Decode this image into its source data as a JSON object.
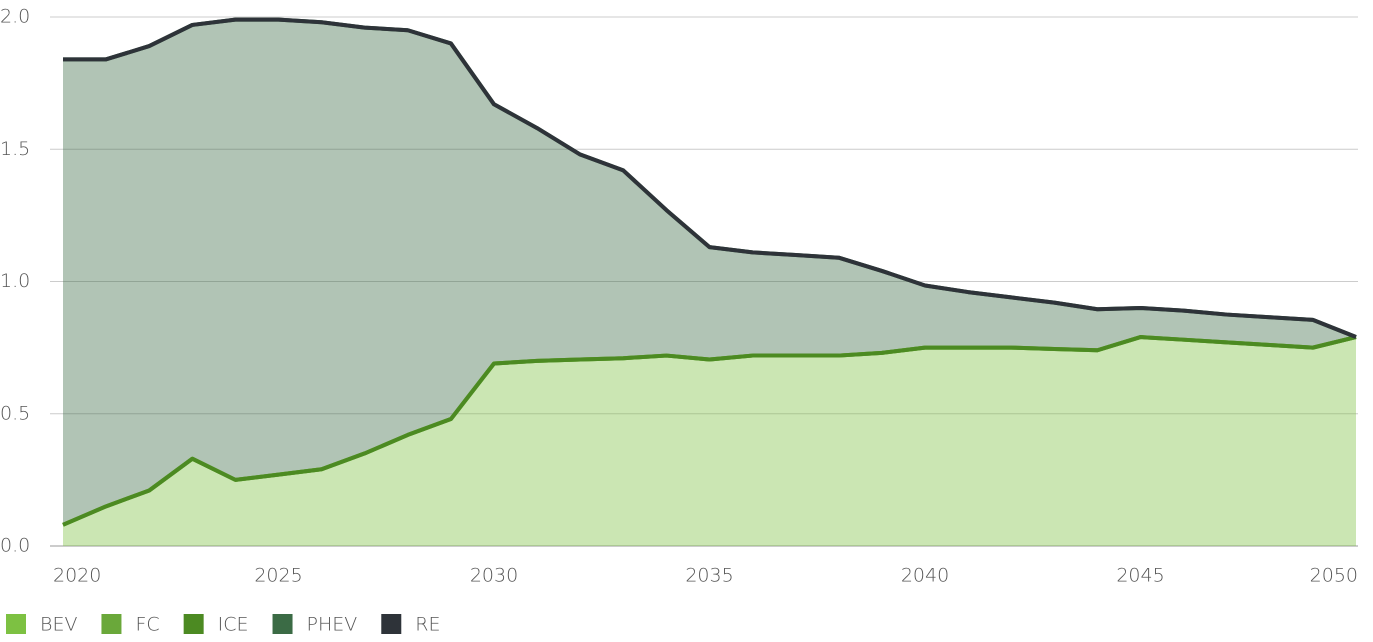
{
  "chart_data": {
    "type": "area",
    "stacked": true,
    "grid": true,
    "legend": "bottom-left",
    "x": [
      2020,
      2021,
      2022,
      2023,
      2024,
      2025,
      2026,
      2027,
      2028,
      2029,
      2030,
      2031,
      2032,
      2033,
      2034,
      2035,
      2036,
      2037,
      2038,
      2039,
      2040,
      2041,
      2042,
      2043,
      2044,
      2045,
      2046,
      2047,
      2048,
      2049,
      2050
    ],
    "xlim": [
      2020,
      2050
    ],
    "xticks": [
      2020,
      2025,
      2030,
      2035,
      2040,
      2045,
      2050
    ],
    "ylim": [
      0,
      2
    ],
    "yticks": [
      {
        "value": 0,
        "label": "0.0"
      },
      0.5,
      {
        "value": 1,
        "label": "1.0"
      },
      1.5,
      {
        "value": 2,
        "label": "2.0"
      }
    ],
    "series": [
      {
        "name": "BEV",
        "color": "#7dc142",
        "values": [
          0.08,
          0.15,
          0.21,
          0.33,
          0.25,
          0.27,
          0.29,
          0.35,
          0.42,
          0.48,
          0.69,
          0.7,
          0.705,
          0.71,
          0.72,
          0.705,
          0.72,
          0.72,
          0.72,
          0.73,
          0.75,
          0.75,
          0.75,
          0.745,
          0.74,
          0.79,
          0.78,
          0.77,
          0.76,
          0.75,
          0.79
        ]
      },
      {
        "name": "FC",
        "color": "#6aa83a",
        "values": [
          0,
          0,
          0,
          0,
          0,
          0,
          0,
          0,
          0,
          0,
          0,
          0,
          0,
          0,
          0,
          0,
          0,
          0,
          0,
          0,
          0,
          0,
          0,
          0,
          0,
          0,
          0,
          0,
          0,
          0,
          0
        ]
      },
      {
        "name": "ICE",
        "color": "#4c8a22",
        "values": [
          0,
          0,
          0,
          0,
          0,
          0,
          0,
          0,
          0,
          0,
          0,
          0,
          0,
          0,
          0,
          0,
          0,
          0,
          0,
          0,
          0,
          0,
          0,
          0,
          0,
          0,
          0,
          0,
          0,
          0,
          0
        ]
      },
      {
        "name": "PHEV",
        "color": "#3b6b45",
        "values": [
          1.76,
          1.69,
          1.68,
          1.64,
          1.74,
          1.72,
          1.69,
          1.61,
          1.53,
          1.42,
          0.98,
          0.88,
          0.775,
          0.71,
          0.55,
          0.425,
          0.39,
          0.38,
          0.37,
          0.31,
          0.235,
          0.21,
          0.19,
          0.175,
          0.155,
          0.11,
          0.11,
          0.105,
          0.105,
          0.105,
          0
        ]
      },
      {
        "name": "RE",
        "color": "#2e3339",
        "values": [
          0,
          0,
          0,
          0,
          0,
          0,
          0,
          0,
          0,
          0,
          0,
          0,
          0,
          0,
          0,
          0,
          0,
          0,
          0,
          0,
          0,
          0,
          0,
          0,
          0,
          0,
          0,
          0,
          0,
          0,
          0
        ]
      }
    ]
  }
}
